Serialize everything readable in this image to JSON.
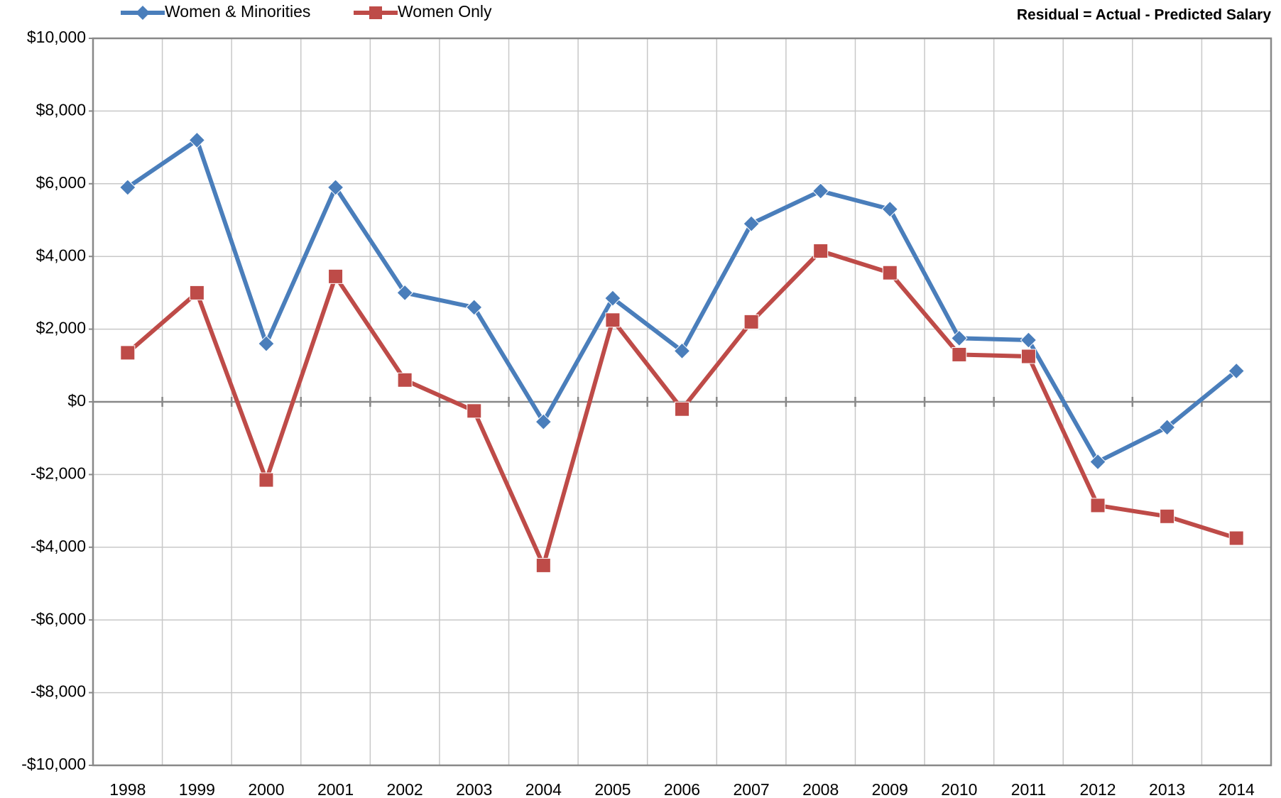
{
  "chart_data": {
    "type": "line",
    "annotation": "Residual = Actual - Predicted Salary",
    "categories": [
      "1998",
      "1999",
      "2000",
      "2001",
      "2002",
      "2003",
      "2004",
      "2005",
      "2006",
      "2007",
      "2008",
      "2009",
      "2010",
      "2011",
      "2012",
      "2013",
      "2014"
    ],
    "series": [
      {
        "name": "Women & Minorities",
        "color": "#4a7ebb",
        "marker": "diamond",
        "values": [
          5900,
          7200,
          1600,
          5900,
          3000,
          2600,
          -550,
          2850,
          1400,
          4900,
          5800,
          5300,
          1750,
          1700,
          -1650,
          -700,
          850
        ]
      },
      {
        "name": "Women Only",
        "color": "#be4b48",
        "marker": "square",
        "values": [
          1350,
          3000,
          -2150,
          3450,
          600,
          -250,
          -4500,
          2250,
          -200,
          2200,
          4150,
          3550,
          1300,
          1250,
          -2850,
          -3150,
          -3750
        ]
      }
    ],
    "ylim": [
      -10000,
      10000
    ],
    "yticks": [
      {
        "value": -10000,
        "label": "-$10,000"
      },
      {
        "value": -8000,
        "label": "-$8,000"
      },
      {
        "value": -6000,
        "label": "-$6,000"
      },
      {
        "value": -4000,
        "label": "-$4,000"
      },
      {
        "value": -2000,
        "label": "-$2,000"
      },
      {
        "value": 0,
        "label": "$0"
      },
      {
        "value": 2000,
        "label": "$2,000"
      },
      {
        "value": 4000,
        "label": "$4,000"
      },
      {
        "value": 6000,
        "label": "$6,000"
      },
      {
        "value": 8000,
        "label": "$8,000"
      },
      {
        "value": 10000,
        "label": "$10,000"
      }
    ],
    "grid": true
  }
}
